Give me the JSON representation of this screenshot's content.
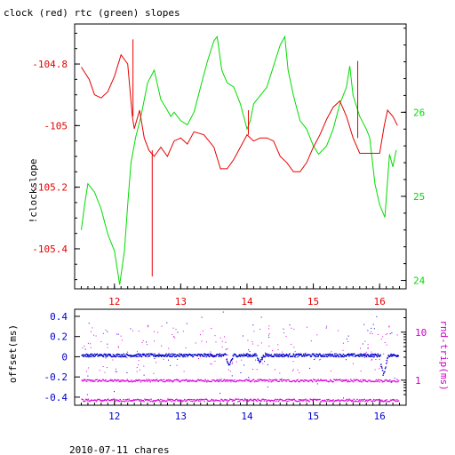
{
  "colors": {
    "clock": "#e60000",
    "rtc": "#00dd00",
    "offset": "#0000cc",
    "rndtrip": "#dd00dd",
    "axis_black": "#000000",
    "axis_blue": "#0000cc",
    "axis_magenta": "#cc00cc"
  },
  "chart_data": [
    {
      "type": "line",
      "title": "clock (red) rtc (green) slopes",
      "ylabel": "!clockslope",
      "xlim": [
        11.4,
        16.4
      ],
      "ylim": [
        -105.53,
        -104.67
      ],
      "y2lim": [
        23.9,
        27.05
      ],
      "x_ticks": [
        "12",
        "13",
        "14",
        "15",
        "16"
      ],
      "y_ticks": [
        "-104.8",
        "-105",
        "-105.2",
        "-105.4"
      ],
      "y2_ticks": [
        "24",
        "25",
        "26"
      ],
      "grid": false,
      "series": [
        {
          "name": "clock",
          "axis": "left",
          "points": [
            [
              11.5,
              -104.81
            ],
            [
              11.62,
              -104.85
            ],
            [
              11.7,
              -104.9
            ],
            [
              11.8,
              -104.91
            ],
            [
              11.9,
              -104.89
            ],
            [
              12.0,
              -104.84
            ],
            [
              12.1,
              -104.77
            ],
            [
              12.2,
              -104.8
            ],
            [
              12.27,
              -104.97
            ],
            [
              12.3,
              -105.01
            ],
            [
              12.38,
              -104.95
            ],
            [
              12.45,
              -105.04
            ],
            [
              12.52,
              -105.08
            ],
            [
              12.6,
              -105.1
            ],
            [
              12.7,
              -105.07
            ],
            [
              12.8,
              -105.1
            ],
            [
              12.9,
              -105.05
            ],
            [
              13.0,
              -105.04
            ],
            [
              13.1,
              -105.06
            ],
            [
              13.2,
              -105.02
            ],
            [
              13.35,
              -105.03
            ],
            [
              13.5,
              -105.07
            ],
            [
              13.6,
              -105.14
            ],
            [
              13.7,
              -105.14
            ],
            [
              13.8,
              -105.11
            ],
            [
              13.9,
              -105.07
            ],
            [
              14.0,
              -105.03
            ],
            [
              14.1,
              -105.05
            ],
            [
              14.2,
              -105.04
            ],
            [
              14.3,
              -105.04
            ],
            [
              14.4,
              -105.05
            ],
            [
              14.5,
              -105.1
            ],
            [
              14.6,
              -105.12
            ],
            [
              14.7,
              -105.15
            ],
            [
              14.8,
              -105.15
            ],
            [
              14.9,
              -105.12
            ],
            [
              15.0,
              -105.07
            ],
            [
              15.1,
              -105.03
            ],
            [
              15.2,
              -104.98
            ],
            [
              15.3,
              -104.94
            ],
            [
              15.4,
              -104.92
            ],
            [
              15.5,
              -104.97
            ],
            [
              15.6,
              -105.04
            ],
            [
              15.7,
              -105.09
            ],
            [
              15.8,
              -105.09
            ],
            [
              16.0,
              -105.09
            ],
            [
              16.07,
              -105.0
            ],
            [
              16.12,
              -104.95
            ],
            [
              16.2,
              -104.97
            ],
            [
              16.27,
              -105.0
            ]
          ],
          "spikes": [
            [
              12.28,
              -104.72
            ],
            [
              12.57,
              -105.49
            ],
            [
              14.02,
              -104.95
            ],
            [
              15.67,
              -104.79
            ]
          ]
        },
        {
          "name": "rtc",
          "axis": "right",
          "points": [
            [
              11.5,
              24.6
            ],
            [
              11.55,
              24.9
            ],
            [
              11.6,
              25.15
            ],
            [
              11.7,
              25.05
            ],
            [
              11.8,
              24.85
            ],
            [
              11.9,
              24.55
            ],
            [
              12.0,
              24.35
            ],
            [
              12.08,
              23.95
            ],
            [
              12.15,
              24.35
            ],
            [
              12.2,
              24.9
            ],
            [
              12.25,
              25.4
            ],
            [
              12.32,
              25.7
            ],
            [
              12.4,
              25.95
            ],
            [
              12.5,
              26.35
            ],
            [
              12.6,
              26.5
            ],
            [
              12.7,
              26.15
            ],
            [
              12.78,
              26.05
            ],
            [
              12.85,
              25.95
            ],
            [
              12.9,
              26.0
            ],
            [
              13.0,
              25.9
            ],
            [
              13.1,
              25.85
            ],
            [
              13.2,
              26.0
            ],
            [
              13.3,
              26.3
            ],
            [
              13.4,
              26.6
            ],
            [
              13.5,
              26.85
            ],
            [
              13.55,
              26.9
            ],
            [
              13.62,
              26.5
            ],
            [
              13.7,
              26.35
            ],
            [
              13.8,
              26.3
            ],
            [
              13.9,
              26.1
            ],
            [
              14.0,
              25.8
            ],
            [
              14.05,
              25.9
            ],
            [
              14.1,
              26.1
            ],
            [
              14.2,
              26.2
            ],
            [
              14.3,
              26.3
            ],
            [
              14.4,
              26.55
            ],
            [
              14.5,
              26.8
            ],
            [
              14.57,
              26.9
            ],
            [
              14.62,
              26.5
            ],
            [
              14.7,
              26.2
            ],
            [
              14.8,
              25.9
            ],
            [
              14.9,
              25.8
            ],
            [
              15.0,
              25.6
            ],
            [
              15.08,
              25.5
            ],
            [
              15.2,
              25.6
            ],
            [
              15.3,
              25.8
            ],
            [
              15.4,
              26.1
            ],
            [
              15.5,
              26.3
            ],
            [
              15.55,
              26.55
            ],
            [
              15.6,
              26.2
            ],
            [
              15.7,
              25.95
            ],
            [
              15.8,
              25.8
            ],
            [
              15.85,
              25.7
            ],
            [
              15.93,
              25.15
            ],
            [
              16.0,
              24.9
            ],
            [
              16.08,
              24.75
            ],
            [
              16.15,
              25.5
            ],
            [
              16.2,
              25.35
            ],
            [
              16.25,
              25.55
            ]
          ]
        }
      ]
    },
    {
      "type": "scatter",
      "ylabel": "offset(ms)",
      "y2label": "rnd-trip(ms)",
      "xlabel": "2010-07-11 chares",
      "xlim": [
        11.4,
        16.4
      ],
      "ylim": [
        -0.48,
        0.47
      ],
      "x_ticks": [
        "12",
        "13",
        "14",
        "15",
        "16"
      ],
      "y_ticks": [
        "0.4",
        "0.2",
        "0",
        "-0.2",
        "-0.4"
      ],
      "y2_ticks": [
        "1",
        "10"
      ],
      "y2_scale": "log",
      "y2lim": [
        0.3,
        30
      ],
      "grid": false,
      "series": [
        {
          "name": "offset",
          "axis": "left",
          "level": 0.02,
          "spread": 0.03
        },
        {
          "name": "rnd-trip",
          "axis": "right",
          "bands": [
            1.0,
            0.39
          ],
          "outliers_max": 15
        }
      ]
    }
  ]
}
